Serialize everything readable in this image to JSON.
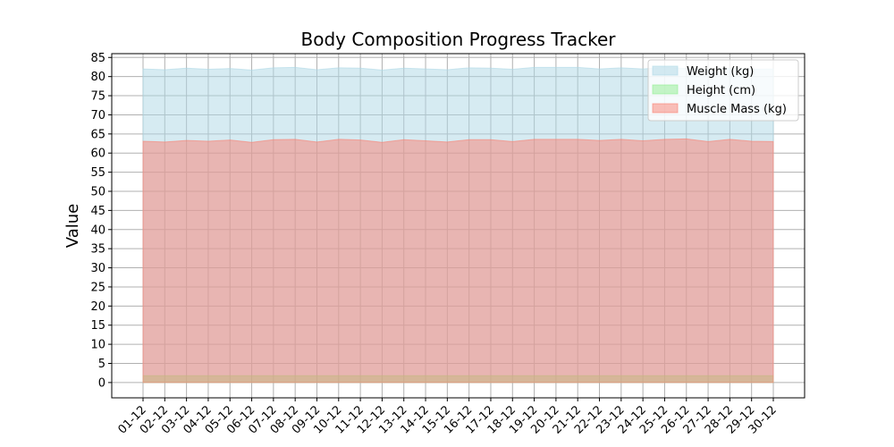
{
  "chart_data": {
    "type": "area",
    "title": "Body Composition Progress Tracker",
    "xlabel": "",
    "ylabel": "Value",
    "x": [
      "01-12",
      "02-12",
      "03-12",
      "04-12",
      "05-12",
      "06-12",
      "07-12",
      "08-12",
      "09-12",
      "10-12",
      "11-12",
      "12-12",
      "13-12",
      "14-12",
      "15-12",
      "16-12",
      "17-12",
      "18-12",
      "19-12",
      "20-12",
      "21-12",
      "22-12",
      "23-12",
      "24-12",
      "25-12",
      "26-12",
      "27-12",
      "28-12",
      "29-12",
      "30-12"
    ],
    "ylim": [
      -4,
      86
    ],
    "yticks": [
      0,
      5,
      10,
      15,
      20,
      25,
      30,
      35,
      40,
      45,
      50,
      55,
      60,
      65,
      70,
      75,
      80,
      85
    ],
    "grid": true,
    "legend": "top-right",
    "series": [
      {
        "name": "Weight (kg)",
        "color": "#add8e6",
        "values": [
          82.0,
          81.8,
          82.2,
          81.9,
          82.1,
          81.7,
          82.3,
          82.4,
          81.8,
          82.3,
          82.2,
          81.7,
          82.2,
          82.0,
          81.8,
          82.3,
          82.2,
          81.9,
          82.4,
          82.4,
          82.4,
          82.0,
          82.3,
          82.0,
          82.4,
          82.1,
          81.8,
          82.2,
          81.9,
          82.0
        ]
      },
      {
        "name": "Height (cm)",
        "color": "#90ee90",
        "values": [
          1.8,
          1.8,
          1.8,
          1.8,
          1.8,
          1.8,
          1.8,
          1.8,
          1.8,
          1.8,
          1.8,
          1.8,
          1.8,
          1.8,
          1.8,
          1.8,
          1.8,
          1.8,
          1.8,
          1.8,
          1.8,
          1.8,
          1.8,
          1.8,
          1.8,
          1.8,
          1.8,
          1.8,
          1.8,
          1.8
        ]
      },
      {
        "name": "Muscle Mass (kg)",
        "color": "#fa8072",
        "values": [
          63.1,
          62.9,
          63.3,
          63.1,
          63.4,
          62.8,
          63.5,
          63.6,
          62.9,
          63.6,
          63.4,
          62.8,
          63.5,
          63.2,
          62.9,
          63.5,
          63.5,
          63.0,
          63.6,
          63.6,
          63.6,
          63.3,
          63.6,
          63.2,
          63.6,
          63.7,
          63.0,
          63.6,
          63.1,
          63.0
        ]
      }
    ]
  }
}
